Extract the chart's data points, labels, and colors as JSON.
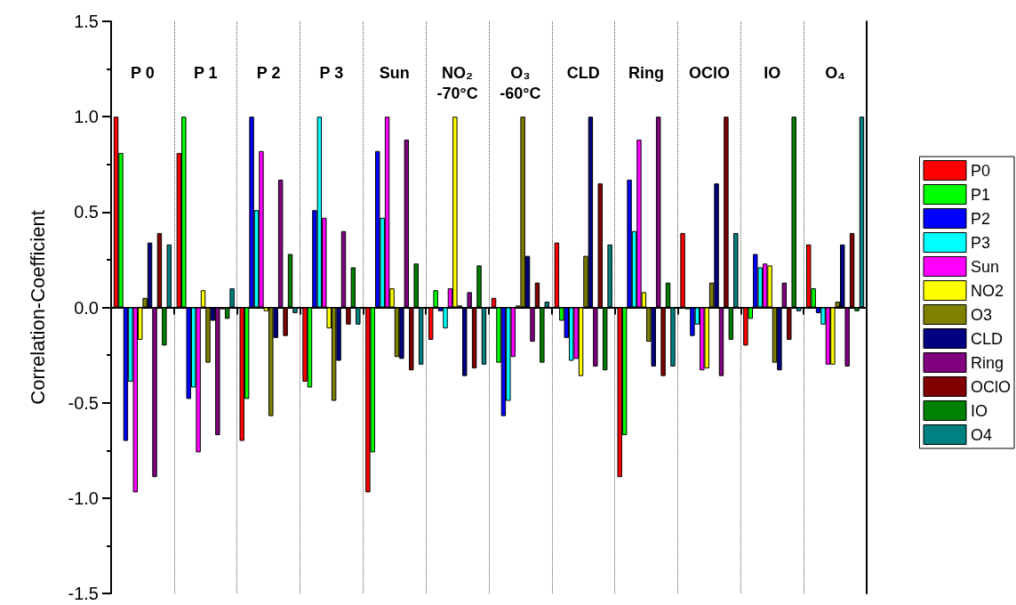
{
  "chart_data": {
    "type": "bar",
    "ylabel": "Correlation-Coefficient",
    "categories": [
      "P 0",
      "P 1",
      "P 2",
      "P 3",
      "Sun",
      "NO₂\n-70°C",
      "O₃\n-60°C",
      "CLD",
      "Ring",
      "OClO",
      "IO",
      "O₄"
    ],
    "series": [
      {
        "name": "P0",
        "color": "#ff0000",
        "values": [
          1,
          0.81,
          -0.7,
          -0.39,
          -0.97,
          -0.17,
          0.05,
          0.34,
          -0.89,
          0.39,
          -0.2,
          0.33
        ]
      },
      {
        "name": "P1",
        "color": "#00ff00",
        "values": [
          0.81,
          1,
          -0.48,
          -0.42,
          -0.76,
          0.09,
          -0.29,
          -0.07,
          -0.67,
          -0.01,
          -0.06,
          0.1
        ]
      },
      {
        "name": "P2",
        "color": "#0000ff",
        "values": [
          -0.7,
          -0.48,
          1,
          0.51,
          0.82,
          -0.02,
          -0.57,
          -0.16,
          0.67,
          -0.15,
          0.28,
          -0.03
        ]
      },
      {
        "name": "P3",
        "color": "#00ffff",
        "values": [
          -0.39,
          -0.42,
          0.51,
          1,
          0.47,
          -0.11,
          -0.49,
          -0.28,
          0.4,
          -0.09,
          0.21,
          -0.09
        ]
      },
      {
        "name": "Sun",
        "color": "#ff00ff",
        "values": [
          -0.97,
          -0.76,
          0.82,
          0.47,
          1,
          0.1,
          -0.26,
          -0.27,
          0.88,
          -0.33,
          0.23,
          -0.3
        ]
      },
      {
        "name": "NO2",
        "color": "#ffff00",
        "values": [
          -0.17,
          0.09,
          -0.02,
          -0.11,
          0.1,
          1,
          0.01,
          -0.36,
          0.08,
          -0.32,
          0.22,
          -0.3
        ]
      },
      {
        "name": "O3",
        "color": "#808000",
        "values": [
          0.05,
          -0.29,
          -0.57,
          -0.49,
          -0.26,
          0.01,
          1,
          0.27,
          -0.18,
          0.13,
          -0.29,
          0.03
        ]
      },
      {
        "name": "CLD",
        "color": "#000080",
        "values": [
          0.34,
          -0.07,
          -0.16,
          -0.28,
          -0.27,
          -0.36,
          0.27,
          1,
          -0.31,
          0.65,
          -0.33,
          0.33
        ]
      },
      {
        "name": "Ring",
        "color": "#800080",
        "values": [
          -0.89,
          -0.67,
          0.67,
          0.4,
          0.88,
          0.08,
          -0.18,
          -0.31,
          1,
          -0.36,
          0.13,
          -0.31
        ]
      },
      {
        "name": "OClO",
        "color": "#800000",
        "values": [
          0.39,
          -0.01,
          -0.15,
          -0.09,
          -0.33,
          -0.32,
          0.13,
          0.65,
          -0.36,
          1,
          -0.17,
          0.39
        ]
      },
      {
        "name": "IO",
        "color": "#008000",
        "values": [
          -0.2,
          -0.06,
          0.28,
          0.21,
          0.23,
          0.22,
          -0.29,
          -0.33,
          0.13,
          -0.17,
          1,
          -0.02
        ]
      },
      {
        "name": "O4",
        "color": "#008080",
        "values": [
          0.33,
          0.1,
          -0.03,
          -0.09,
          -0.3,
          -0.3,
          0.03,
          0.33,
          -0.31,
          0.39,
          -0.02,
          1
        ]
      }
    ],
    "ylim": [
      -1.5,
      1.5
    ],
    "yticks": [
      {
        "value": -1.5,
        "label": "-1.5"
      },
      {
        "value": -1,
        "label": "-1.0"
      },
      {
        "value": -0.5,
        "label": "-0.5"
      },
      {
        "value": 0,
        "label": "0.0"
      },
      {
        "value": 0.5,
        "label": "0.5"
      },
      {
        "value": 1,
        "label": "1.0"
      },
      {
        "value": 1.5,
        "label": "1.5"
      }
    ],
    "grid": "x",
    "legend": "right"
  }
}
